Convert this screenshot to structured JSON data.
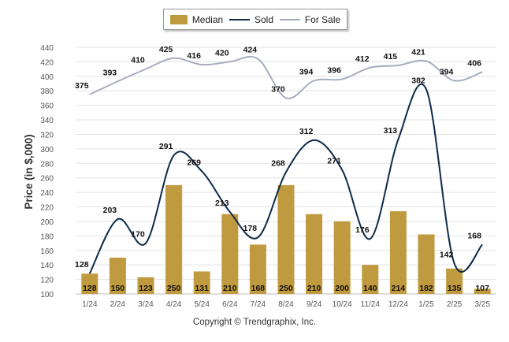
{
  "legend": {
    "items": [
      {
        "label": "Median",
        "color": "#c09a3f",
        "kind": "bar"
      },
      {
        "label": "Sold",
        "color": "#0e2a4a",
        "kind": "line"
      },
      {
        "label": "For Sale",
        "color": "#a6adbd",
        "kind": "line"
      }
    ]
  },
  "copyright": "Copyright © Trendgraphix, Inc.",
  "chart_data": {
    "type": "bar",
    "title": "",
    "xlabel": "",
    "ylabel": "Price (in $,000)",
    "ylim": [
      100,
      440
    ],
    "yticks": [
      100,
      120,
      140,
      160,
      180,
      200,
      220,
      240,
      260,
      280,
      300,
      320,
      340,
      360,
      380,
      400,
      420,
      440
    ],
    "grid": true,
    "legend_position": "top-center",
    "categories": [
      "1/24",
      "2/24",
      "3/24",
      "4/24",
      "5/24",
      "6/24",
      "7/24",
      "8/24",
      "9/24",
      "10/24",
      "11/24",
      "12/24",
      "1/25",
      "2/25",
      "3/25"
    ],
    "series": [
      {
        "name": "Median",
        "type": "bar",
        "color": "#c09a3f",
        "values": [
          128,
          150,
          123,
          250,
          131,
          210,
          168,
          250,
          210,
          200,
          140,
          214,
          182,
          135,
          107
        ]
      },
      {
        "name": "Sold",
        "type": "line",
        "color": "#0e2a4a",
        "values": [
          128,
          203,
          170,
          291,
          269,
          213,
          178,
          268,
          312,
          271,
          176,
          313,
          382,
          142,
          168
        ]
      },
      {
        "name": "For Sale",
        "type": "line",
        "color": "#a6adbd",
        "values": [
          375,
          393,
          410,
          425,
          416,
          420,
          424,
          370,
          394,
          396,
          412,
          415,
          421,
          394,
          406
        ]
      }
    ]
  }
}
